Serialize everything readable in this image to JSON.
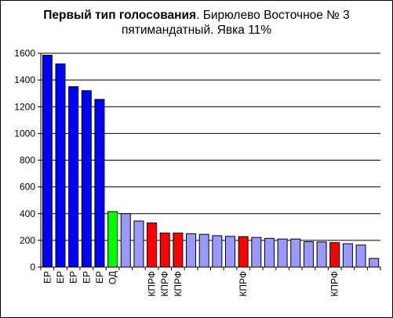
{
  "chart_data": {
    "type": "bar",
    "title_bold": "Первый тип голосования",
    "title_rest": ". Бирюлево Восточное № 3 пятимандатный. Явка 11%",
    "xlabel": "",
    "ylabel": "",
    "ylim": [
      0,
      1600
    ],
    "yticks": [
      0,
      200,
      400,
      600,
      800,
      1000,
      1200,
      1400,
      1600
    ],
    "grid": true,
    "legend": "none",
    "categories": [
      "ЕР",
      "ЕР",
      "ЕР",
      "ЕР",
      "ЕР",
      "ОД",
      "",
      "",
      "КПРФ",
      "КПРФ",
      "КПРФ",
      "",
      "",
      "",
      "",
      "КПРФ",
      "",
      "",
      "",
      "",
      "",
      "",
      "КПРФ",
      "",
      "",
      ""
    ],
    "values": [
      1585,
      1520,
      1350,
      1320,
      1255,
      415,
      400,
      345,
      330,
      255,
      255,
      250,
      245,
      235,
      230,
      228,
      222,
      215,
      210,
      210,
      190,
      188,
      183,
      175,
      165,
      65
    ],
    "bar_colors": [
      "#0000ff",
      "#0000ff",
      "#0000ff",
      "#0000ff",
      "#0000ff",
      "#00ff00",
      "#9999ff",
      "#9999ff",
      "#ff0000",
      "#ff0000",
      "#ff0000",
      "#9999ff",
      "#9999ff",
      "#9999ff",
      "#9999ff",
      "#ff0000",
      "#9999ff",
      "#9999ff",
      "#9999ff",
      "#9999ff",
      "#9999ff",
      "#9999ff",
      "#ff0000",
      "#9999ff",
      "#9999ff",
      "#9999ff"
    ]
  }
}
